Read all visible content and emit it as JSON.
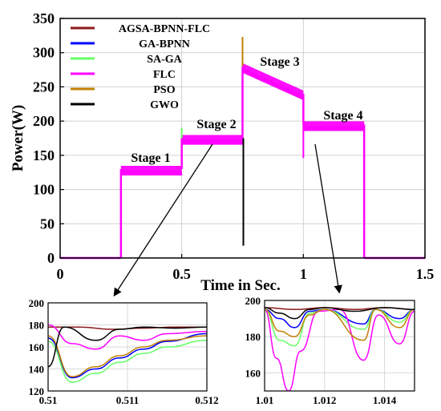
{
  "chart_data": [
    {
      "type": "line",
      "xlabel": "Time in Sec.",
      "ylabel": "Power(W)",
      "xlim": [
        0,
        1.5
      ],
      "ylim": [
        0,
        350
      ],
      "xticks": [
        "0",
        "0.5",
        "1",
        "1.5"
      ],
      "yticks": [
        "0",
        "50",
        "100",
        "150",
        "200",
        "250",
        "300",
        "350"
      ],
      "grid": true,
      "legend_position": "top-left",
      "stages": [
        {
          "label": "Stage 1",
          "t_start": 0.25,
          "t_end": 0.5,
          "power": 130
        },
        {
          "label": "Stage 2",
          "t_start": 0.5,
          "t_end": 0.75,
          "power": 175
        },
        {
          "label": "Stage 3",
          "t_start": 0.75,
          "t_end": 1.0,
          "power_start": 280,
          "power_end": 240
        },
        {
          "label": "Stage 4",
          "t_start": 1.0,
          "t_end": 1.25,
          "power": 195
        }
      ],
      "series": [
        {
          "name": "AGSA-BPNN-FLC",
          "color": "#8B1A1A"
        },
        {
          "name": "GA-BPNN",
          "color": "#0000FF"
        },
        {
          "name": "SA-GA",
          "color": "#66FF66"
        },
        {
          "name": "FLC",
          "color": "#FF00FF"
        },
        {
          "name": "PSO",
          "color": "#C08000"
        },
        {
          "name": "GWO",
          "color": "#000000"
        }
      ],
      "transients": [
        {
          "series": "PSO",
          "x": 0.75,
          "y": 323
        },
        {
          "series": "GWO",
          "x": 0.75,
          "y": 103
        },
        {
          "series": "GWO",
          "x": 0.75,
          "y": 18
        },
        {
          "series": "SA-GA",
          "x": 0.5,
          "y": 190
        }
      ]
    },
    {
      "type": "line",
      "title": "",
      "xlim": [
        0.51,
        0.512
      ],
      "ylim": [
        120,
        200
      ],
      "xticks": [
        "0.51",
        "0.511",
        "0.512"
      ],
      "yticks": [
        "120",
        "140",
        "160",
        "180",
        "200"
      ],
      "grid": true,
      "series": [
        {
          "name": "AGSA-BPNN-FLC",
          "color": "#8B1A1A",
          "x": [
            0.51,
            0.5104,
            0.5108,
            0.5112,
            0.5116,
            0.512
          ],
          "y": [
            178,
            178,
            176,
            177,
            178,
            178
          ]
        },
        {
          "name": "GA-BPNN",
          "color": "#0000FF",
          "x": [
            0.51,
            0.5103,
            0.5106,
            0.5109,
            0.5112,
            0.5115,
            0.512
          ],
          "y": [
            168,
            132,
            140,
            150,
            158,
            165,
            172
          ]
        },
        {
          "name": "SA-GA",
          "color": "#66FF66",
          "x": [
            0.51,
            0.5103,
            0.5106,
            0.5109,
            0.5112,
            0.5115,
            0.512
          ],
          "y": [
            165,
            128,
            136,
            146,
            154,
            160,
            166
          ]
        },
        {
          "name": "FLC",
          "color": "#FF00FF",
          "x": [
            0.51,
            0.5103,
            0.5106,
            0.5109,
            0.5112,
            0.5115,
            0.512
          ],
          "y": [
            180,
            163,
            158,
            170,
            166,
            172,
            174
          ]
        },
        {
          "name": "PSO",
          "color": "#C08000",
          "x": [
            0.51,
            0.5103,
            0.5106,
            0.5109,
            0.5112,
            0.5115,
            0.512
          ],
          "y": [
            170,
            133,
            142,
            152,
            160,
            166,
            170
          ]
        },
        {
          "name": "GWO",
          "color": "#000000",
          "x": [
            0.51,
            0.5102,
            0.5106,
            0.5109,
            0.5112,
            0.5116,
            0.512
          ],
          "y": [
            142,
            178,
            166,
            176,
            178,
            177,
            178
          ]
        }
      ]
    },
    {
      "type": "line",
      "title": "",
      "xlim": [
        1.01,
        1.015
      ],
      "ylim": [
        150,
        200
      ],
      "xticks": [
        "1.01",
        "1.012",
        "1.014"
      ],
      "yticks": [
        "160",
        "180",
        "200"
      ],
      "grid": true,
      "series": [
        {
          "name": "AGSA-BPNN-FLC",
          "color": "#8B1A1A",
          "x": [
            1.01,
            1.011,
            1.012,
            1.013,
            1.014,
            1.015
          ],
          "y": [
            196,
            195,
            196,
            195,
            196,
            195
          ]
        },
        {
          "name": "GA-BPNN",
          "color": "#0000FF",
          "x": [
            1.01,
            1.0105,
            1.011,
            1.0115,
            1.012,
            1.0133,
            1.0137,
            1.0145,
            1.015
          ],
          "y": [
            195,
            190,
            185,
            194,
            195,
            187,
            195,
            190,
            195
          ]
        },
        {
          "name": "SA-GA",
          "color": "#66FF66",
          "x": [
            1.01,
            1.0105,
            1.011,
            1.0115,
            1.012,
            1.0133,
            1.0137,
            1.0145,
            1.015
          ],
          "y": [
            195,
            178,
            175,
            193,
            195,
            184,
            195,
            188,
            195
          ]
        },
        {
          "name": "FLC",
          "color": "#FF00FF",
          "x": [
            1.01,
            1.0104,
            1.0108,
            1.0112,
            1.0118,
            1.0125,
            1.0133,
            1.0138,
            1.0145,
            1.015
          ],
          "y": [
            195,
            168,
            150,
            172,
            194,
            195,
            167,
            192,
            176,
            194
          ]
        },
        {
          "name": "PSO",
          "color": "#C08000",
          "x": [
            1.01,
            1.0105,
            1.011,
            1.0115,
            1.012,
            1.0133,
            1.0137,
            1.0145,
            1.015
          ],
          "y": [
            195,
            183,
            180,
            192,
            195,
            178,
            195,
            185,
            195
          ]
        },
        {
          "name": "GWO",
          "color": "#000000",
          "x": [
            1.01,
            1.0105,
            1.011,
            1.0115,
            1.012,
            1.013,
            1.014,
            1.015
          ],
          "y": [
            196,
            193,
            190,
            195,
            196,
            194,
            196,
            195
          ]
        }
      ]
    }
  ]
}
